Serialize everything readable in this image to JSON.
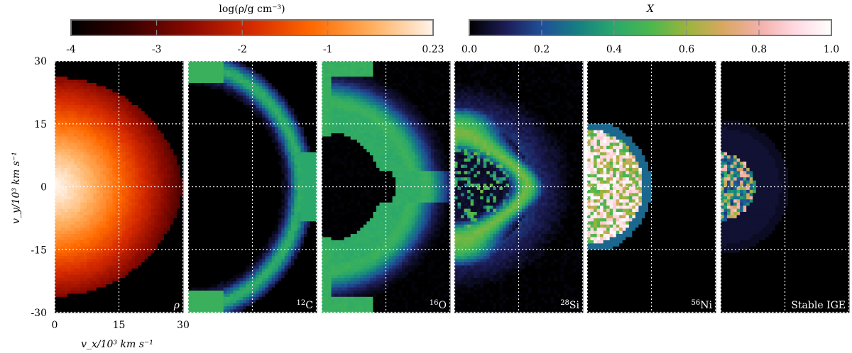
{
  "colorbars": [
    {
      "label": "log(ρ/g cm⁻³)",
      "ticks": [
        "-4",
        "-3",
        "-2",
        "-1",
        "0.23"
      ],
      "tick_values": [
        -4,
        -3,
        -2,
        -1,
        0.23
      ],
      "range": [
        -4,
        0.23
      ],
      "colors": [
        "#000000",
        "#3a0000",
        "#8c0a00",
        "#d62a00",
        "#ff6a00",
        "#ffb060",
        "#fff4ea"
      ]
    },
    {
      "label": "X",
      "ticks": [
        "0.0",
        "0.2",
        "0.4",
        "0.6",
        "0.8",
        "1.0"
      ],
      "tick_values": [
        0.0,
        0.2,
        0.4,
        0.6,
        0.8,
        1.0
      ],
      "range": [
        0,
        1
      ],
      "colors": [
        "#000000",
        "#1c1c55",
        "#204f98",
        "#157f82",
        "#2aa86c",
        "#4ab84e",
        "#9ab43c",
        "#d8a860",
        "#f2b0a8",
        "#ffd9e2",
        "#ffffff"
      ]
    }
  ],
  "axes": {
    "ylabel": "v_y/10³ km s⁻¹",
    "xlabel": "v_x/10³ km s⁻¹",
    "yticks": [
      "30",
      "15",
      "0",
      "-15",
      "-30"
    ],
    "xticks": [
      "0",
      "15",
      "30"
    ],
    "xlim": [
      0,
      30
    ],
    "ylim": [
      -30,
      30
    ]
  },
  "panels": [
    {
      "label": "ρ"
    },
    {
      "label_sup": "12",
      "label": "C"
    },
    {
      "label_sup": "16",
      "label": "O"
    },
    {
      "label_sup": "28",
      "label": "Si"
    },
    {
      "label_sup": "56",
      "label": "Ni"
    },
    {
      "label": "Stable IGE"
    }
  ],
  "chart_data": {
    "type": "heatmap",
    "xlabel": "v_x/10³ km s⁻¹",
    "ylabel": "v_y/10³ km s⁻¹",
    "xlim": [
      0,
      30
    ],
    "ylim": [
      -30,
      30
    ],
    "grid": true,
    "panels": [
      {
        "quantity": "log density",
        "colorbar": 0,
        "max_value": 0.23,
        "outer_velocity": 29
      },
      {
        "quantity": "C-12 mass fraction",
        "colorbar": 1,
        "peak_velocity": 27,
        "peak_value": 0.5
      },
      {
        "quantity": "O-16 mass fraction",
        "colorbar": 1,
        "peak_velocity": 21,
        "peak_value": 0.45
      },
      {
        "quantity": "Si-28 mass fraction",
        "colorbar": 1,
        "peak_velocity": 15,
        "peak_value": 0.5
      },
      {
        "quantity": "Ni-56 mass fraction",
        "colorbar": 1,
        "peak_velocity": 11,
        "peak_value": 0.9
      },
      {
        "quantity": "stable IGE mass fraction",
        "colorbar": 1,
        "peak_velocity": 4,
        "peak_value": 0.7
      }
    ]
  }
}
